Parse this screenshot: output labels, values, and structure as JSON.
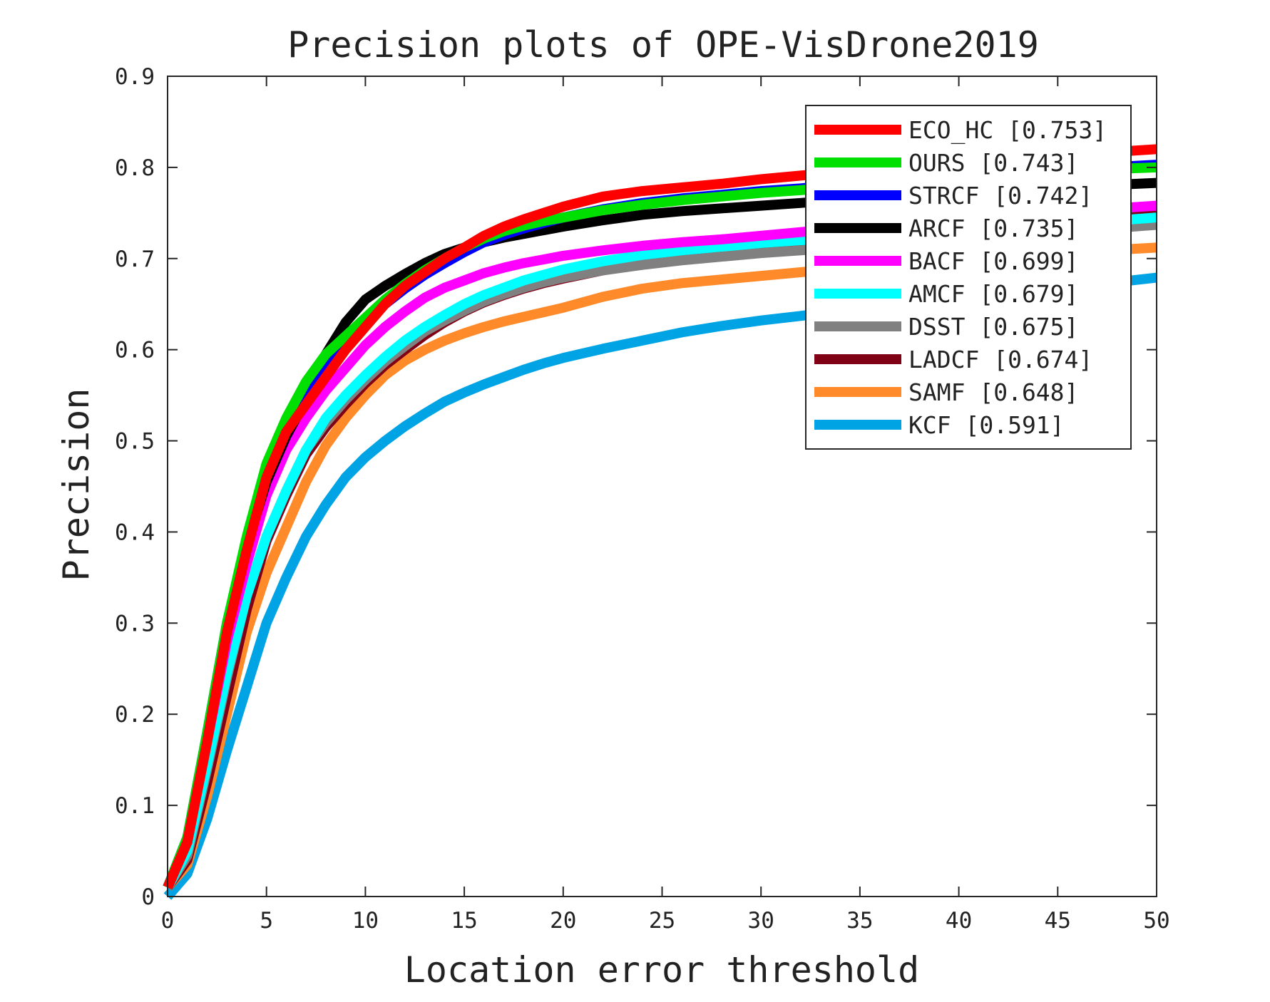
{
  "chart_data": {
    "type": "line",
    "title": "Precision plots of OPE-VisDrone2019",
    "xlabel": "Location error threshold",
    "ylabel": "Precision",
    "xlim": [
      0,
      50
    ],
    "ylim": [
      0,
      0.9
    ],
    "grid": false,
    "legend_position": "top-right",
    "xticks": [
      "0",
      "5",
      "10",
      "15",
      "20",
      "25",
      "30",
      "35",
      "40",
      "45",
      "50"
    ],
    "yticks": [
      "0",
      "0.1",
      "0.2",
      "0.3",
      "0.4",
      "0.5",
      "0.6",
      "0.7",
      "0.8",
      "0.9"
    ],
    "x": [
      0,
      1,
      2,
      3,
      4,
      5,
      6,
      7,
      8,
      9,
      10,
      11,
      12,
      13,
      14,
      15,
      16,
      17,
      18,
      19,
      20,
      22,
      24,
      26,
      28,
      30,
      32,
      35,
      40,
      45,
      50
    ],
    "series": [
      {
        "name": "ECO_HC",
        "label": "ECO_HC [0.753]",
        "color": "#ff0000",
        "values": [
          0.01,
          0.06,
          0.17,
          0.29,
          0.38,
          0.46,
          0.51,
          0.54,
          0.57,
          0.6,
          0.625,
          0.65,
          0.67,
          0.685,
          0.7,
          0.712,
          0.725,
          0.735,
          0.743,
          0.75,
          0.757,
          0.768,
          0.774,
          0.778,
          0.782,
          0.787,
          0.791,
          0.797,
          0.805,
          0.813,
          0.82
        ]
      },
      {
        "name": "OURS",
        "label": "OURS [0.743]",
        "color": "#00e000",
        "values": [
          0.01,
          0.065,
          0.18,
          0.3,
          0.395,
          0.475,
          0.525,
          0.565,
          0.595,
          0.615,
          0.635,
          0.655,
          0.672,
          0.687,
          0.7,
          0.712,
          0.722,
          0.73,
          0.736,
          0.741,
          0.745,
          0.753,
          0.759,
          0.764,
          0.768,
          0.772,
          0.775,
          0.781,
          0.789,
          0.796,
          0.8
        ]
      },
      {
        "name": "STRCF",
        "label": "STRCF [0.742]",
        "color": "#0000ff",
        "values": [
          0.01,
          0.065,
          0.18,
          0.3,
          0.39,
          0.465,
          0.515,
          0.55,
          0.585,
          0.61,
          0.63,
          0.65,
          0.667,
          0.682,
          0.695,
          0.707,
          0.718,
          0.726,
          0.733,
          0.739,
          0.745,
          0.754,
          0.761,
          0.766,
          0.77,
          0.774,
          0.777,
          0.783,
          0.791,
          0.797,
          0.803
        ]
      },
      {
        "name": "ARCF",
        "label": "ARCF [0.735]",
        "color": "#000000",
        "values": [
          0.01,
          0.06,
          0.175,
          0.29,
          0.385,
          0.455,
          0.505,
          0.545,
          0.595,
          0.63,
          0.655,
          0.67,
          0.683,
          0.695,
          0.705,
          0.712,
          0.718,
          0.723,
          0.727,
          0.731,
          0.735,
          0.742,
          0.748,
          0.752,
          0.755,
          0.758,
          0.761,
          0.766,
          0.772,
          0.778,
          0.783
        ]
      },
      {
        "name": "BACF",
        "label": "BACF [0.699]",
        "color": "#ff00ff",
        "values": [
          0.01,
          0.06,
          0.17,
          0.28,
          0.365,
          0.44,
          0.49,
          0.525,
          0.555,
          0.58,
          0.605,
          0.625,
          0.642,
          0.657,
          0.668,
          0.676,
          0.684,
          0.69,
          0.695,
          0.699,
          0.703,
          0.709,
          0.714,
          0.718,
          0.721,
          0.725,
          0.729,
          0.735,
          0.743,
          0.751,
          0.758
        ]
      },
      {
        "name": "AMCF",
        "label": "AMCF [0.679]",
        "color": "#00ffff",
        "values": [
          0.01,
          0.05,
          0.145,
          0.245,
          0.33,
          0.395,
          0.445,
          0.49,
          0.525,
          0.55,
          0.572,
          0.592,
          0.61,
          0.625,
          0.638,
          0.65,
          0.66,
          0.668,
          0.676,
          0.682,
          0.688,
          0.697,
          0.704,
          0.709,
          0.713,
          0.717,
          0.72,
          0.724,
          0.73,
          0.737,
          0.745
        ]
      },
      {
        "name": "DSST",
        "label": "DSST [0.675]",
        "color": "#808080",
        "values": [
          0.01,
          0.045,
          0.14,
          0.24,
          0.33,
          0.395,
          0.445,
          0.49,
          0.52,
          0.545,
          0.567,
          0.587,
          0.604,
          0.62,
          0.632,
          0.643,
          0.653,
          0.661,
          0.668,
          0.674,
          0.679,
          0.687,
          0.693,
          0.698,
          0.702,
          0.706,
          0.709,
          0.714,
          0.721,
          0.729,
          0.737
        ]
      },
      {
        "name": "LADCF",
        "label": "LADCF [0.674]",
        "color": "#800015",
        "values": [
          0.01,
          0.04,
          0.125,
          0.22,
          0.315,
          0.39,
          0.44,
          0.485,
          0.515,
          0.54,
          0.563,
          0.583,
          0.6,
          0.616,
          0.63,
          0.642,
          0.652,
          0.66,
          0.667,
          0.673,
          0.678,
          0.687,
          0.694,
          0.699,
          0.704,
          0.708,
          0.712,
          0.718,
          0.727,
          0.737,
          0.748
        ]
      },
      {
        "name": "SAMF",
        "label": "SAMF [0.648]",
        "color": "#ff8a2a",
        "values": [
          0.01,
          0.035,
          0.11,
          0.2,
          0.29,
          0.355,
          0.405,
          0.455,
          0.495,
          0.525,
          0.55,
          0.572,
          0.588,
          0.6,
          0.61,
          0.618,
          0.625,
          0.631,
          0.636,
          0.641,
          0.646,
          0.658,
          0.667,
          0.673,
          0.677,
          0.681,
          0.685,
          0.691,
          0.699,
          0.706,
          0.712
        ]
      },
      {
        "name": "KCF",
        "label": "KCF [0.591]",
        "color": "#00a4e4",
        "values": [
          0.0,
          0.025,
          0.085,
          0.16,
          0.23,
          0.3,
          0.35,
          0.395,
          0.43,
          0.46,
          0.482,
          0.5,
          0.516,
          0.53,
          0.543,
          0.553,
          0.562,
          0.57,
          0.578,
          0.585,
          0.591,
          0.601,
          0.61,
          0.619,
          0.626,
          0.632,
          0.637,
          0.645,
          0.655,
          0.667,
          0.679
        ]
      }
    ]
  }
}
